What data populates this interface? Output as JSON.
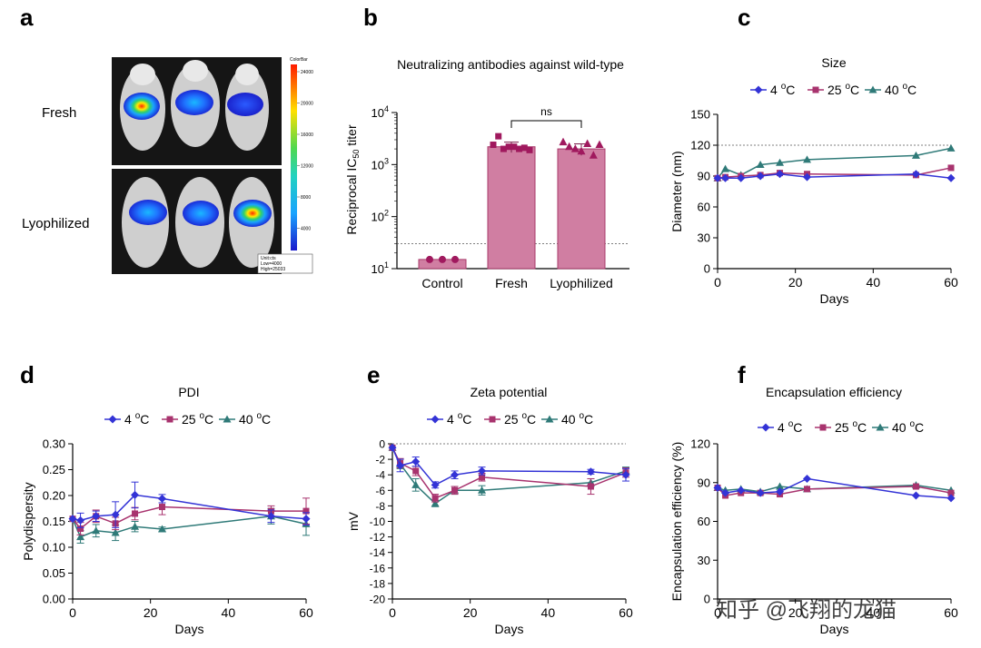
{
  "panel_letters": [
    "a",
    "b",
    "c",
    "d",
    "e",
    "f"
  ],
  "colors": {
    "c4": "#3333d6",
    "c25": "#a8336e",
    "c40": "#2f7a78",
    "bar": "#d07ea2",
    "barEdge": "#a83a6a",
    "dot": "#a0195e"
  },
  "watermark": "知乎 @飞翔的龙猫",
  "chart_data": [
    {
      "id": "a",
      "type": "image",
      "title": "Bioluminescence imaging",
      "row_labels": [
        "Fresh",
        "Lyophilized"
      ],
      "colorbar": {
        "label": "ColorBar",
        "ticks": [
          "24000",
          "20000",
          "16000",
          "12000",
          "8000",
          "4000"
        ],
        "legend_lines": [
          "Unit:cts",
          "Low=4000",
          "High=25033"
        ]
      }
    },
    {
      "id": "b",
      "type": "bar",
      "title": "Neutralizing antibodies against wild-type",
      "ylabel_parts": [
        "Reciprocal IC",
        "50",
        " titer"
      ],
      "yscale": "log",
      "ylim": [
        10,
        10000
      ],
      "ytick_base": "10",
      "ytick_exps": [
        "1",
        "2",
        "3",
        "4"
      ],
      "categories": [
        "Control",
        "Fresh",
        "Lyophilized"
      ],
      "values": [
        15,
        2200,
        2000
      ],
      "errors": [
        0,
        500,
        500
      ],
      "threshold": 30,
      "points": [
        [
          15,
          15,
          15
        ],
        [
          2400,
          3500,
          2000,
          2200,
          2200,
          2000,
          2100,
          1900
        ],
        [
          2700,
          2200,
          2000,
          1800,
          2500,
          1500,
          2400
        ]
      ],
      "comparison": {
        "label": "ns",
        "between": [
          "Fresh",
          "Lyophilized"
        ]
      }
    },
    {
      "id": "c",
      "type": "line",
      "title": "Size",
      "xlabel": "Days",
      "ylabel": "Diameter (nm)",
      "xlim": [
        0,
        60
      ],
      "ylim": [
        0,
        150
      ],
      "xticks": [
        0,
        20,
        40,
        60
      ],
      "yticks": [
        0,
        30,
        60,
        90,
        120,
        150
      ],
      "legend": [
        {
          "name": "4 ",
          "sup": "o",
          "unit": "C"
        },
        {
          "name": "25 ",
          "sup": "o",
          "unit": "C"
        },
        {
          "name": "40 ",
          "sup": "o",
          "unit": "C"
        }
      ],
      "ref_line": 120,
      "x": [
        0,
        2,
        6,
        11,
        16,
        23,
        51,
        60
      ],
      "series": [
        {
          "name": "4 °C",
          "values": [
            88,
            88,
            88,
            90,
            92,
            89,
            92,
            88
          ],
          "errors": [
            0,
            0,
            0,
            0,
            0,
            0,
            0,
            0
          ]
        },
        {
          "name": "25 °C",
          "values": [
            88,
            89,
            90,
            91,
            93,
            92,
            91,
            98
          ],
          "errors": [
            0,
            0,
            0,
            0,
            0,
            0,
            0,
            0
          ]
        },
        {
          "name": "40 °C",
          "values": [
            88,
            97,
            91,
            101,
            103,
            106,
            110,
            117
          ],
          "errors": [
            0,
            0,
            0,
            0,
            0,
            0,
            0,
            0
          ]
        }
      ]
    },
    {
      "id": "d",
      "type": "line",
      "title": "PDI",
      "xlabel": "Days",
      "ylabel": "Polydispersity",
      "xlim": [
        0,
        60
      ],
      "ylim": [
        0,
        0.3
      ],
      "xticks": [
        0,
        20,
        40,
        60
      ],
      "yticks": [
        0.0,
        0.05,
        0.1,
        0.15,
        0.2,
        0.25,
        0.3
      ],
      "yformat": 2,
      "legend": [
        {
          "name": "4 ",
          "sup": "o",
          "unit": "C"
        },
        {
          "name": "25 ",
          "sup": "o",
          "unit": "C"
        },
        {
          "name": "40 ",
          "sup": "o",
          "unit": "C"
        }
      ],
      "x": [
        0,
        2,
        6,
        11,
        16,
        23,
        51,
        60
      ],
      "series": [
        {
          "name": "4 °C",
          "values": [
            0.155,
            0.152,
            0.16,
            0.163,
            0.201,
            0.194,
            0.16,
            0.155
          ],
          "errors": [
            0,
            0.014,
            0.01,
            0.025,
            0.025,
            0.008,
            0.012,
            0.012
          ]
        },
        {
          "name": "25 °C",
          "values": [
            0.155,
            0.136,
            0.16,
            0.146,
            0.165,
            0.178,
            0.17,
            0.17
          ],
          "errors": [
            0,
            0.012,
            0.012,
            0.012,
            0.012,
            0.015,
            0.01,
            0.025
          ]
        },
        {
          "name": "40 °C",
          "values": [
            0.155,
            0.12,
            0.132,
            0.128,
            0.14,
            0.135,
            0.16,
            0.145
          ],
          "errors": [
            0,
            0.012,
            0.012,
            0.015,
            0.01,
            0.004,
            0.015,
            0.022
          ]
        }
      ]
    },
    {
      "id": "e",
      "type": "line",
      "title": "Zeta potential",
      "xlabel": "Days",
      "ylabel": "mV",
      "xlim": [
        0,
        60
      ],
      "ylim": [
        -20,
        0
      ],
      "xticks": [
        0,
        20,
        40,
        60
      ],
      "yticks": [
        0,
        -2,
        -4,
        -6,
        -8,
        -10,
        -12,
        -14,
        -16,
        -18,
        -20
      ],
      "legend": [
        {
          "name": "4 ",
          "sup": "o",
          "unit": "C"
        },
        {
          "name": "25 ",
          "sup": "o",
          "unit": "C"
        },
        {
          "name": "40 ",
          "sup": "o",
          "unit": "C"
        }
      ],
      "ref_line": 0,
      "x": [
        0,
        2,
        6,
        11,
        16,
        23,
        51,
        60
      ],
      "series": [
        {
          "name": "4 °C",
          "values": [
            -0.5,
            -2.8,
            -2.3,
            -5.3,
            -4.0,
            -3.5,
            -3.6,
            -4.0
          ],
          "errors": [
            0,
            0.8,
            0.6,
            0.4,
            0.5,
            0.5,
            0.3,
            0.8
          ]
        },
        {
          "name": "25 °C",
          "values": [
            -0.5,
            -2.5,
            -3.5,
            -7.0,
            -6.0,
            -4.3,
            -5.5,
            -3.7
          ],
          "errors": [
            0,
            0.6,
            0.6,
            0.5,
            0.5,
            0.5,
            1.0,
            0.6
          ]
        },
        {
          "name": "40 °C",
          "values": [
            -0.5,
            -2.6,
            -5.3,
            -7.7,
            -6.0,
            -6.0,
            -5.0,
            -3.5
          ],
          "errors": [
            0,
            0.6,
            0.8,
            0.4,
            0.5,
            0.6,
            0.5,
            0.5
          ]
        }
      ]
    },
    {
      "id": "f",
      "type": "line",
      "title": "Encapsulation efficiency",
      "xlabel": "Days",
      "ylabel": "Encapsulation efficiency (%)",
      "xlim": [
        0,
        60
      ],
      "ylim": [
        0,
        120
      ],
      "xticks": [
        0,
        20,
        40,
        60
      ],
      "yticks": [
        0,
        30,
        60,
        90,
        120
      ],
      "legend": [
        {
          "name": "4 ",
          "sup": "o",
          "unit": "C"
        },
        {
          "name": "25 ",
          "sup": "o",
          "unit": "C"
        },
        {
          "name": "40 ",
          "sup": "o",
          "unit": "C"
        }
      ],
      "x": [
        0,
        2,
        6,
        11,
        16,
        23,
        51,
        60
      ],
      "series": [
        {
          "name": "4 °C",
          "values": [
            86,
            82,
            84,
            82,
            83,
            93,
            80,
            78
          ],
          "errors": [
            0,
            0,
            0,
            0,
            0,
            0,
            0,
            0
          ]
        },
        {
          "name": "25 °C",
          "values": [
            86,
            80,
            82,
            82,
            81,
            85,
            87,
            82
          ],
          "errors": [
            0,
            0,
            0,
            0,
            0,
            0,
            0,
            0
          ]
        },
        {
          "name": "40 °C",
          "values": [
            86,
            84,
            85,
            83,
            87,
            85,
            88,
            84
          ],
          "errors": [
            0,
            0,
            0,
            0,
            0,
            0,
            0,
            0
          ]
        }
      ]
    }
  ]
}
